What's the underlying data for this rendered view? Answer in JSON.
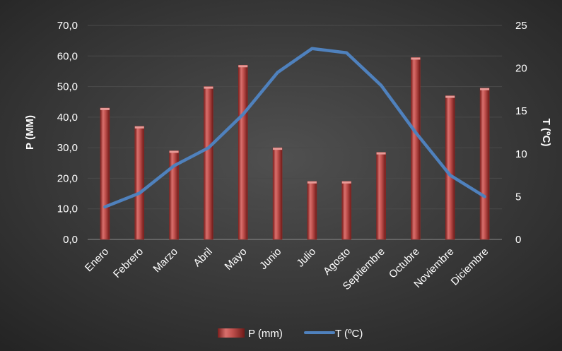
{
  "chart_data": {
    "type": "bar",
    "title": "",
    "categories": [
      "Enero",
      "Febrero",
      "Marzo",
      "Abril",
      "Mayo",
      "Junio",
      "Julio",
      "Agosto",
      "Septiembre",
      "Octubre",
      "Noviembre",
      "Diciembre"
    ],
    "series": [
      {
        "name": "P (mm)",
        "type": "bar",
        "axis": "left",
        "color": "#c0504d",
        "values": [
          43.0,
          37.0,
          29.0,
          50.0,
          57.0,
          30.0,
          19.0,
          19.0,
          28.5,
          59.5,
          47.0,
          49.5
        ]
      },
      {
        "name": "T (ºC)",
        "type": "line",
        "axis": "right",
        "color": "#4f81bd",
        "values": [
          3.8,
          5.4,
          8.6,
          10.7,
          14.6,
          19.5,
          22.3,
          21.8,
          18.0,
          12.5,
          7.5,
          5.0
        ]
      }
    ],
    "ylabel": "P (MM)",
    "y2label": "T (ºC)",
    "ylim": [
      0,
      70
    ],
    "y2lim": [
      0,
      25
    ],
    "yticks": [
      "0,0",
      "10,0",
      "20,0",
      "30,0",
      "40,0",
      "50,0",
      "60,0",
      "70,0"
    ],
    "y2ticks": [
      "0",
      "5",
      "10",
      "15",
      "20",
      "25"
    ],
    "grid": true,
    "legend_position": "bottom",
    "background": "#2b2b2b"
  }
}
